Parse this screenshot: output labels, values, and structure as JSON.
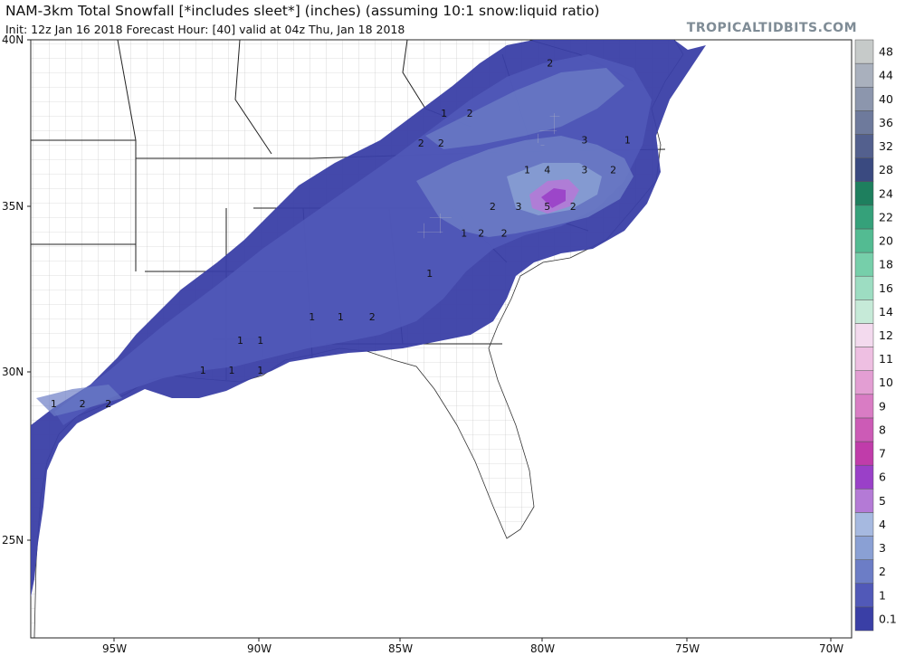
{
  "header": {
    "title": "NAM-3km Total Snowfall [*includes sleet*] (inches) (assuming 10:1 snow:liquid ratio)",
    "subtitle": "Init: 12z Jan 16 2018   Forecast Hour: [40]   valid at 04z Thu, Jan 18 2018",
    "brand": "TROPICALTIDBITS.COM"
  },
  "axes": {
    "lat_labels": [
      "40N",
      "35N",
      "30N",
      "25N"
    ],
    "lon_labels": [
      "95W",
      "90W",
      "85W",
      "80W",
      "75W",
      "70W"
    ]
  },
  "colorbar": {
    "levels": [
      "0.1",
      "1",
      "2",
      "3",
      "4",
      "5",
      "6",
      "7",
      "8",
      "9",
      "10",
      "11",
      "12",
      "14",
      "16",
      "18",
      "20",
      "22",
      "24",
      "28",
      "32",
      "36",
      "40",
      "44",
      "48"
    ],
    "colors": [
      "#3a3fa6",
      "#5159b8",
      "#6c7dc6",
      "#8aa0d4",
      "#a6b9e0",
      "#b47ad6",
      "#9a40c8",
      "#c03caa",
      "#cc5bb6",
      "#d97cc4",
      "#e39ed3",
      "#eebfe2",
      "#f3daee",
      "#c6ead8",
      "#9dddc2",
      "#76cfaa",
      "#53bb92",
      "#35a17a",
      "#1e7f5e",
      "#3a4a80",
      "#53608e",
      "#6e7a9c",
      "#8c96ad",
      "#a9b0bd",
      "#c6cac9"
    ]
  },
  "contour_labels": [
    {
      "text": "2",
      "lon": -79.8,
      "lat": 39.2
    },
    {
      "text": "1",
      "lon": -83.5,
      "lat": 37.7
    },
    {
      "text": "2",
      "lon": -82.6,
      "lat": 37.7
    },
    {
      "text": "2",
      "lon": -84.3,
      "lat": 36.8
    },
    {
      "text": "2",
      "lon": -83.6,
      "lat": 36.8
    },
    {
      "text": "3",
      "lon": -78.6,
      "lat": 36.9
    },
    {
      "text": "1",
      "lon": -77.1,
      "lat": 36.9
    },
    {
      "text": "1",
      "lon": -80.6,
      "lat": 36.0
    },
    {
      "text": "4",
      "lon": -79.9,
      "lat": 36.0
    },
    {
      "text": "3",
      "lon": -78.6,
      "lat": 36.0
    },
    {
      "text": "2",
      "lon": -77.6,
      "lat": 36.0
    },
    {
      "text": "2",
      "lon": -81.8,
      "lat": 34.9
    },
    {
      "text": "3",
      "lon": -80.9,
      "lat": 34.9
    },
    {
      "text": "5",
      "lon": -79.9,
      "lat": 34.9
    },
    {
      "text": "2",
      "lon": -79.0,
      "lat": 34.9
    },
    {
      "text": "1",
      "lon": -82.8,
      "lat": 34.1
    },
    {
      "text": "2",
      "lon": -82.2,
      "lat": 34.1
    },
    {
      "text": "2",
      "lon": -81.4,
      "lat": 34.1
    },
    {
      "text": "1",
      "lon": -84.0,
      "lat": 32.9
    },
    {
      "text": "1",
      "lon": -88.1,
      "lat": 31.6
    },
    {
      "text": "1",
      "lon": -87.1,
      "lat": 31.6
    },
    {
      "text": "2",
      "lon": -86.0,
      "lat": 31.6
    },
    {
      "text": "1",
      "lon": -90.6,
      "lat": 30.9
    },
    {
      "text": "1",
      "lon": -89.9,
      "lat": 30.9
    },
    {
      "text": "1",
      "lon": -91.9,
      "lat": 30.0
    },
    {
      "text": "1",
      "lon": -90.9,
      "lat": 30.0
    },
    {
      "text": "1",
      "lon": -89.9,
      "lat": 30.0
    },
    {
      "text": "1",
      "lon": -97.1,
      "lat": 29.0
    },
    {
      "text": "2",
      "lon": -96.1,
      "lat": 29.0
    },
    {
      "text": "2",
      "lon": -95.2,
      "lat": 29.0
    }
  ]
}
